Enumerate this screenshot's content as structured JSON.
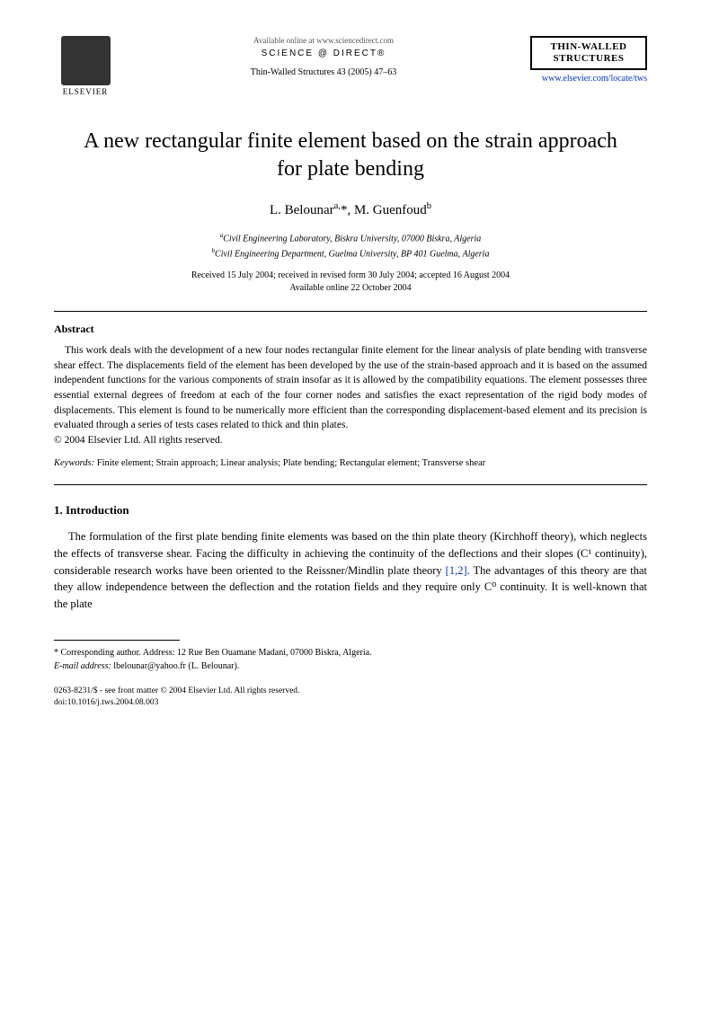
{
  "header": {
    "publisher": "ELSEVIER",
    "available": "Available online at www.sciencedirect.com",
    "sciencedirect": "SCIENCE @ DIRECT®",
    "journal_ref": "Thin-Walled Structures 43 (2005) 47–63",
    "journal_box": "THIN-WALLED STRUCTURES",
    "journal_url": "www.elsevier.com/locate/tws"
  },
  "title": "A new rectangular finite element based on the strain approach for plate bending",
  "authors": {
    "a1_name": "L. Belounar",
    "a1_sup": "a,",
    "a2_name": ", M. Guenfoud",
    "a2_sup": "b"
  },
  "affiliations": {
    "a": "Civil Engineering Laboratory, Biskra University, 07000 Biskra, Algeria",
    "b": "Civil Engineering Department, Guelma University, BP 401 Guelma, Algeria",
    "a_sup": "a",
    "b_sup": "b"
  },
  "dates": {
    "line1": "Received 15 July 2004; received in revised form 30 July 2004; accepted 16 August 2004",
    "line2": "Available online 22 October 2004"
  },
  "abstract": {
    "heading": "Abstract",
    "text": "This work deals with the development of a new four nodes rectangular finite element for the linear analysis of plate bending with transverse shear effect. The displacements field of the element has been developed by the use of the strain-based approach and it is based on the assumed independent functions for the various components of strain insofar as it is allowed by the compatibility equations. The element possesses three essential external degrees of freedom at each of the four corner nodes and satisfies the exact representation of the rigid body modes of displacements. This element is found to be numerically more efficient than the corresponding displacement-based element and its precision is evaluated through a series of tests cases related to thick and thin plates.",
    "copyright": "© 2004 Elsevier Ltd. All rights reserved."
  },
  "keywords": {
    "label": "Keywords:",
    "text": " Finite element; Strain approach; Linear analysis; Plate bending; Rectangular element; Transverse shear"
  },
  "introduction": {
    "heading": "1. Introduction",
    "text_before_ref": "The formulation of the first plate bending finite elements was based on the thin plate theory (Kirchhoff theory), which neglects the effects of transverse shear. Facing the difficulty in achieving the continuity of the deflections and their slopes (C¹ continuity), considerable research works have been oriented to the Reissner/Mindlin plate theory ",
    "ref": "[1,2]",
    "text_after_ref": ". The advantages of this theory are that they allow independence between the deflection and the rotation fields and they require only C⁰ continuity. It is well-known that the plate"
  },
  "corresponding": {
    "marker": "* ",
    "line1": "Corresponding author. Address: 12 Rue Ben Ouamane Madani, 07000 Biskra, Algeria.",
    "email_label": "E-mail address:",
    "email": " lbelounar@yahoo.fr (L. Belounar)."
  },
  "footer": {
    "issn": "0263-8231/$ - see front matter © 2004 Elsevier Ltd. All rights reserved.",
    "doi": "doi:10.1016/j.tws.2004.08.003"
  }
}
